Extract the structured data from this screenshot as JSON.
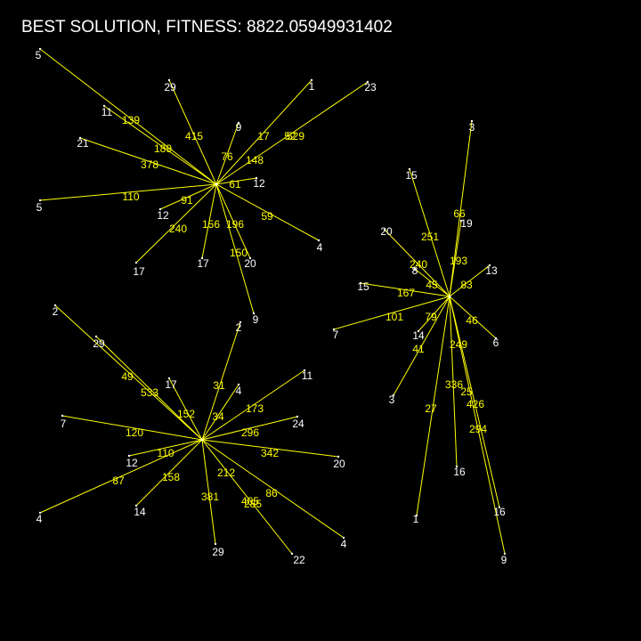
{
  "title": "BEST SOLUTION, FITNESS: 8822.05949931402",
  "colors": {
    "background": "#000000",
    "edge": "#ffff00",
    "node_label": "#ffffff",
    "edge_label": "#ffff00",
    "title": "#ffffff"
  },
  "clusters": [
    {
      "spokes": [
        {
          "node": "5",
          "weight": "139"
        },
        {
          "node": "29",
          "weight": "415"
        },
        {
          "node": "1",
          "weight": "17"
        },
        {
          "node": "23",
          "weight": "529"
        },
        {
          "node": "11",
          "weight": "189"
        },
        {
          "node": "9",
          "weight": "76"
        },
        {
          "node": "21",
          "weight": "378"
        },
        {
          "node": "12",
          "weight": "61"
        },
        {
          "node": "5",
          "weight": "110"
        },
        {
          "node": "12",
          "weight": "91"
        },
        {
          "node": "4",
          "weight": "59"
        },
        {
          "node": "17",
          "weight": "240"
        },
        {
          "node": "17",
          "weight": "156"
        },
        {
          "node": "20",
          "weight": "196"
        },
        {
          "node": "9",
          "weight": "150"
        }
      ],
      "extra_labels": [
        "148",
        "52"
      ]
    },
    {
      "spokes": [
        {
          "node": "3",
          "weight": "66"
        },
        {
          "node": "15",
          "weight": "251"
        },
        {
          "node": "19",
          "weight": "193"
        },
        {
          "node": "20",
          "weight": "240"
        },
        {
          "node": "8",
          "weight": "45"
        },
        {
          "node": "13",
          "weight": "83"
        },
        {
          "node": "15",
          "weight": "167"
        },
        {
          "node": "7",
          "weight": "101"
        },
        {
          "node": "14",
          "weight": "79"
        },
        {
          "node": "6",
          "weight": "46"
        },
        {
          "node": "3",
          "weight": "41"
        },
        {
          "node": "1",
          "weight": "27"
        },
        {
          "node": "16",
          "weight": "336"
        },
        {
          "node": "16",
          "weight": "294"
        },
        {
          "node": "9",
          "weight": "426"
        }
      ],
      "extra_labels": [
        "249",
        "25"
      ]
    },
    {
      "spokes": [
        {
          "node": "2",
          "weight": "533"
        },
        {
          "node": "29",
          "weight": "49"
        },
        {
          "node": "17",
          "weight": "152"
        },
        {
          "node": "2",
          "weight": "31"
        },
        {
          "node": "4",
          "weight": "34"
        },
        {
          "node": "11",
          "weight": "173"
        },
        {
          "node": "7",
          "weight": "120"
        },
        {
          "node": "24",
          "weight": "296"
        },
        {
          "node": "20",
          "weight": "342"
        },
        {
          "node": "12",
          "weight": "110"
        },
        {
          "node": "4",
          "weight": "87"
        },
        {
          "node": "14",
          "weight": "158"
        },
        {
          "node": "29",
          "weight": "381"
        },
        {
          "node": "22",
          "weight": "212"
        },
        {
          "node": "4",
          "weight": "86"
        }
      ],
      "extra_labels": [
        "405",
        "285"
      ]
    }
  ]
}
